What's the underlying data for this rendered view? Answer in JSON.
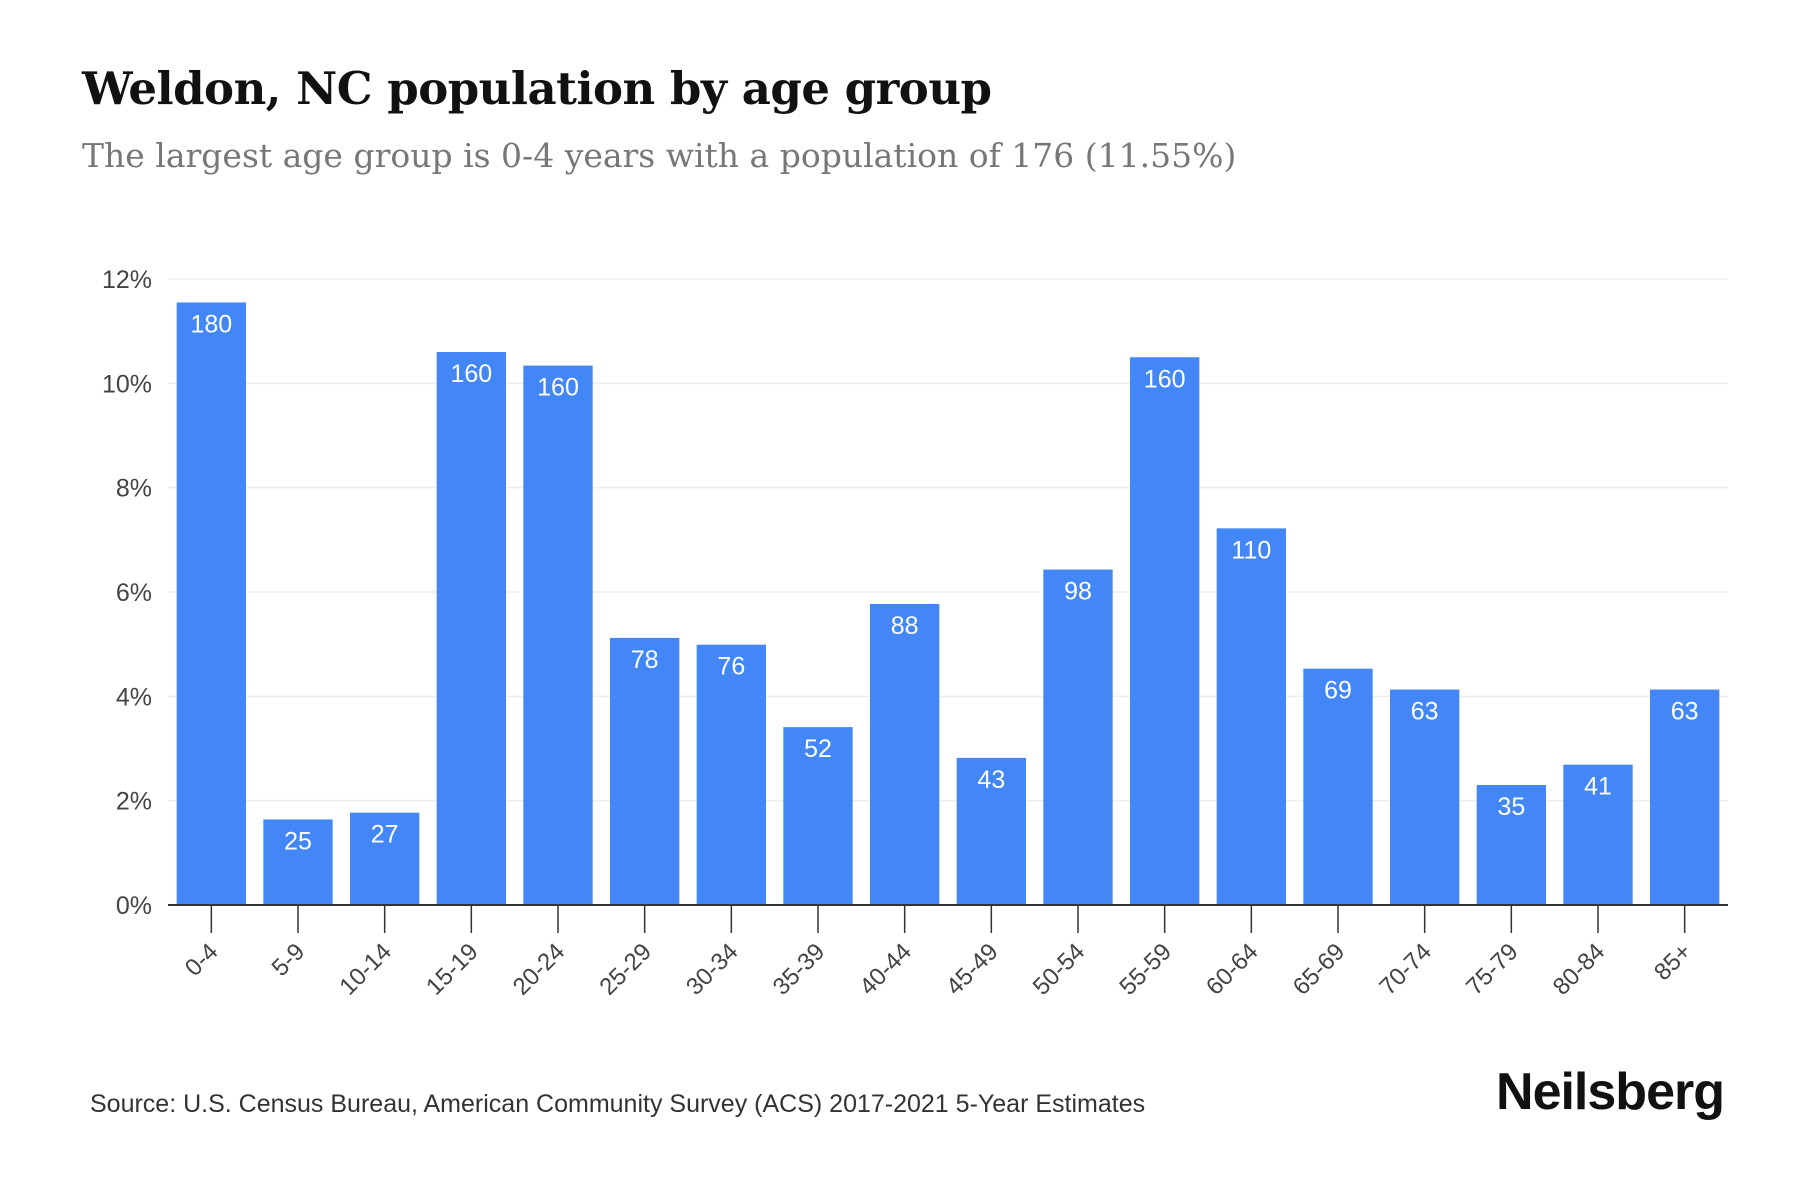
{
  "header": {
    "title": "Weldon, NC population by age group",
    "subtitle": "The largest age group is 0-4 years with a population of 176 (11.55%)"
  },
  "footer": {
    "source": "Source: U.S. Census Bureau, American Community Survey (ACS) 2017-2021 5-Year Estimates",
    "brand": "Neilsberg"
  },
  "colors": {
    "bar": "#4287f5",
    "bar_label": "#ffffff",
    "grid": "#eeeeee",
    "axis": "#333333",
    "tick_text": "#444444"
  },
  "chart_data": {
    "type": "bar",
    "categories": [
      "0-4",
      "5-9",
      "10-14",
      "15-19",
      "20-24",
      "25-29",
      "30-34",
      "35-39",
      "40-44",
      "45-49",
      "50-54",
      "55-59",
      "60-64",
      "65-69",
      "70-74",
      "75-79",
      "80-84",
      "85+"
    ],
    "values": [
      11.55,
      1.64,
      1.77,
      10.6,
      10.34,
      5.12,
      4.99,
      3.41,
      5.77,
      2.82,
      6.43,
      10.5,
      7.22,
      4.53,
      4.13,
      2.3,
      2.69,
      4.13
    ],
    "data_labels": [
      "180",
      "25",
      "27",
      "160",
      "160",
      "78",
      "76",
      "52",
      "88",
      "43",
      "98",
      "160",
      "110",
      "69",
      "63",
      "35",
      "41",
      "63"
    ],
    "y_ticks": [
      0,
      2,
      4,
      6,
      8,
      10,
      12
    ],
    "y_tick_labels": [
      "0%",
      "2%",
      "4%",
      "6%",
      "8%",
      "10%",
      "12%"
    ],
    "ylim": [
      0,
      12
    ],
    "grid": true,
    "legend": "none"
  }
}
